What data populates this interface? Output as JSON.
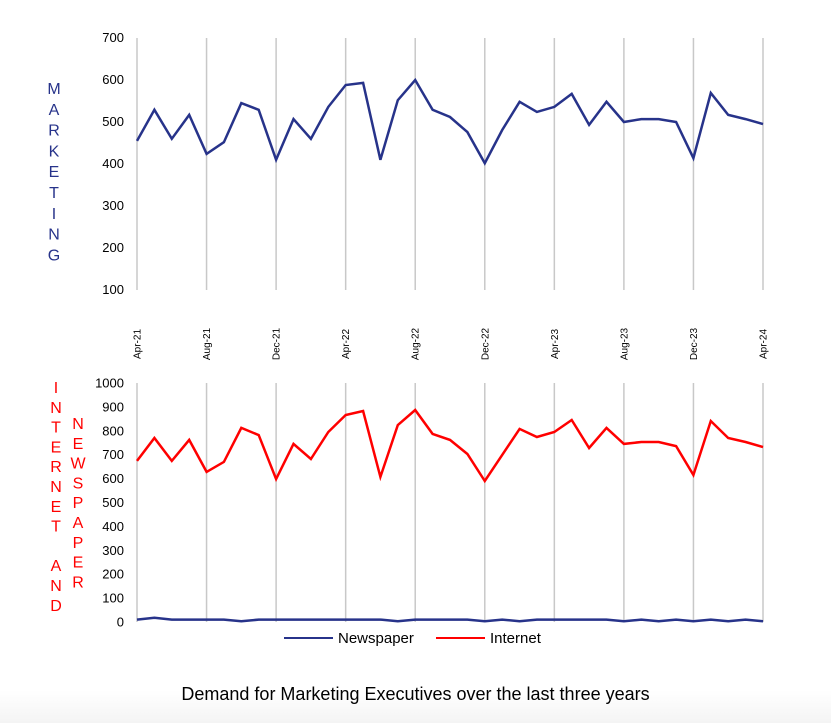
{
  "chart_data": [
    {
      "type": "line",
      "ylabel": "MARKETING",
      "ylim": [
        100,
        700
      ],
      "yticks": [
        "700",
        "600",
        "500",
        "400",
        "300",
        "200",
        "100"
      ],
      "ytick_values": [
        700,
        600,
        500,
        400,
        300,
        200,
        100
      ],
      "xtick_labels": [
        "Apr-21",
        "Aug-21",
        "Dec-21",
        "Apr-22",
        "Aug-22",
        "Dec-22",
        "Apr-23",
        "Aug-23",
        "Dec-23",
        "Apr-24"
      ],
      "xtick_every": 4,
      "grid": "vertical",
      "x": [
        "Apr-21",
        "May-21",
        "Jun-21",
        "Jul-21",
        "Aug-21",
        "Sep-21",
        "Oct-21",
        "Nov-21",
        "Dec-21",
        "Jan-22",
        "Feb-22",
        "Mar-22",
        "Apr-22",
        "May-22",
        "Jun-22",
        "Jul-22",
        "Aug-22",
        "Sep-22",
        "Oct-22",
        "Nov-22",
        "Dec-22",
        "Jan-23",
        "Feb-23",
        "Mar-23",
        "Apr-23",
        "May-23",
        "Jun-23",
        "Jul-23",
        "Aug-23",
        "Sep-23",
        "Oct-23",
        "Nov-23",
        "Dec-23",
        "Jan-24",
        "Feb-24",
        "Mar-24",
        "Apr-24"
      ],
      "series": [
        {
          "name": "Marketing",
          "color": "#27338a",
          "values": [
            455,
            529,
            460,
            517,
            424,
            452,
            545,
            529,
            410,
            507,
            460,
            536,
            588,
            593,
            410,
            552,
            600,
            529,
            512,
            476,
            402,
            481,
            548,
            524,
            536,
            567,
            493,
            548,
            500,
            507,
            507,
            500,
            414,
            569,
            517,
            507,
            495
          ]
        }
      ]
    },
    {
      "type": "line",
      "ylabel_left": "INTERNET AND",
      "ylabel_right": "NEWSPAPER",
      "ylim": [
        0,
        1000
      ],
      "yticks": [
        "1000",
        "900",
        "800",
        "700",
        "600",
        "500",
        "400",
        "300",
        "200",
        "100",
        "0"
      ],
      "ytick_values": [
        1000,
        900,
        800,
        700,
        600,
        500,
        400,
        300,
        200,
        100,
        0
      ],
      "grid": "vertical",
      "legend": "bottom",
      "series": [
        {
          "name": "Newspaper",
          "color": "#27338a",
          "values": [
            10,
            18,
            10,
            10,
            10,
            10,
            3,
            10,
            10,
            10,
            10,
            10,
            10,
            10,
            10,
            3,
            10,
            10,
            10,
            10,
            3,
            10,
            3,
            10,
            10,
            10,
            10,
            10,
            3,
            10,
            3,
            10,
            3,
            10,
            3,
            10,
            3
          ]
        },
        {
          "name": "Internet",
          "color": "#ff0000",
          "values": [
            674,
            770,
            674,
            762,
            628,
            670,
            812,
            782,
            598,
            745,
            682,
            795,
            866,
            883,
            607,
            824,
            887,
            787,
            762,
            703,
            590,
            699,
            808,
            774,
            795,
            845,
            728,
            812,
            745,
            753,
            753,
            736,
            615,
            841,
            770,
            753,
            732
          ]
        }
      ]
    }
  ],
  "title": "Demand for Marketing Executives over the last three years",
  "legend": {
    "newspaper": "Newspaper",
    "internet": "Internet"
  },
  "ylabels": {
    "marketing": [
      "M",
      "A",
      "R",
      "K",
      "E",
      "T",
      "I",
      "N",
      "G"
    ],
    "internet": [
      "I",
      "N",
      "T",
      "E",
      "R",
      "N",
      "E",
      "T",
      "",
      "A",
      "N",
      "D"
    ],
    "newspaper": [
      "N",
      "E",
      "W",
      "S",
      "P",
      "A",
      "P",
      "E",
      "R"
    ]
  },
  "colors": {
    "navy": "#27338a",
    "red": "#ff0000",
    "grid": "#c8c8c8"
  }
}
